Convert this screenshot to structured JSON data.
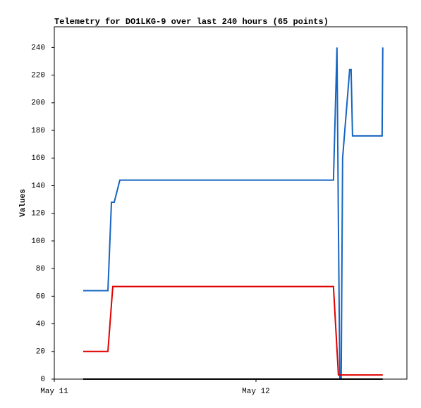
{
  "chart_data": {
    "type": "line",
    "title": "Telemetry for DO1LKG-9 over last 240 hours (65 points)",
    "y_label": "Values",
    "xlim": [
      0,
      41.96
    ],
    "xticks": [
      {
        "value": 0,
        "label": "May 11"
      },
      {
        "value": 24,
        "label": "May 12"
      }
    ],
    "ylim": [
      0,
      255
    ],
    "yticks": [
      0,
      20,
      40,
      60,
      80,
      100,
      120,
      140,
      160,
      180,
      200,
      220,
      240
    ],
    "grid": false,
    "series": [
      {
        "color": "#1565c0",
        "x": [
          3.44,
          6.38,
          6.8,
          7.13,
          7.8,
          33.22,
          33.64,
          33.81,
          33.98,
          34.14,
          34.31,
          35.15,
          35.32,
          35.49,
          39.01,
          39.09
        ],
        "values": [
          64,
          64,
          128,
          128,
          144,
          144,
          240,
          112,
          0,
          0,
          160,
          224,
          224,
          176,
          176,
          240
        ]
      },
      {
        "color": "#e00000",
        "x": [
          3.44,
          6.38,
          6.96,
          33.22,
          33.81,
          39.09
        ],
        "values": [
          20,
          20,
          67,
          67,
          3,
          3
        ]
      },
      {
        "color": "#000000",
        "x": [
          3.44,
          39.09
        ],
        "values": [
          0,
          0
        ]
      }
    ]
  }
}
